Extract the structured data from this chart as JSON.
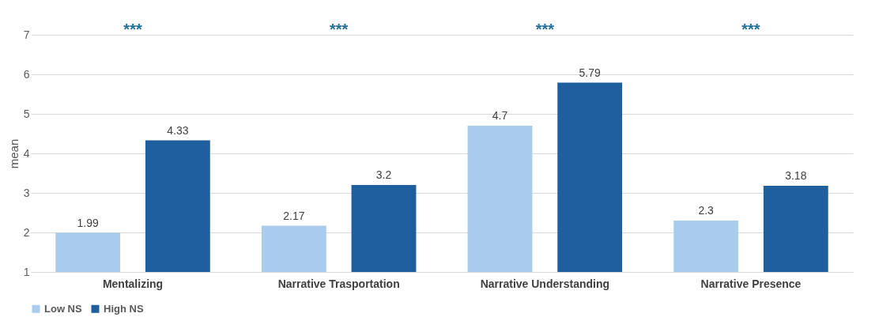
{
  "chart_data": {
    "type": "bar",
    "ylabel": "mean",
    "categories": [
      "Mentalizing",
      "Narrative Trasportation",
      "Narrative Understanding",
      "Narrative Presence"
    ],
    "series": [
      {
        "name": "Low NS",
        "color": "#a9cbec",
        "values": [
          1.99,
          2.17,
          4.7,
          2.3
        ]
      },
      {
        "name": "High NS",
        "color": "#1f5f9e",
        "values": [
          4.33,
          3.2,
          5.79,
          3.18
        ]
      }
    ],
    "ylim": [
      1,
      7
    ],
    "yticks": [
      1,
      2,
      3,
      4,
      5,
      6,
      7
    ],
    "grid": "y",
    "legend": "bottom",
    "data_labels": true,
    "annotations": [
      "***",
      "***",
      "***",
      "***"
    ]
  }
}
